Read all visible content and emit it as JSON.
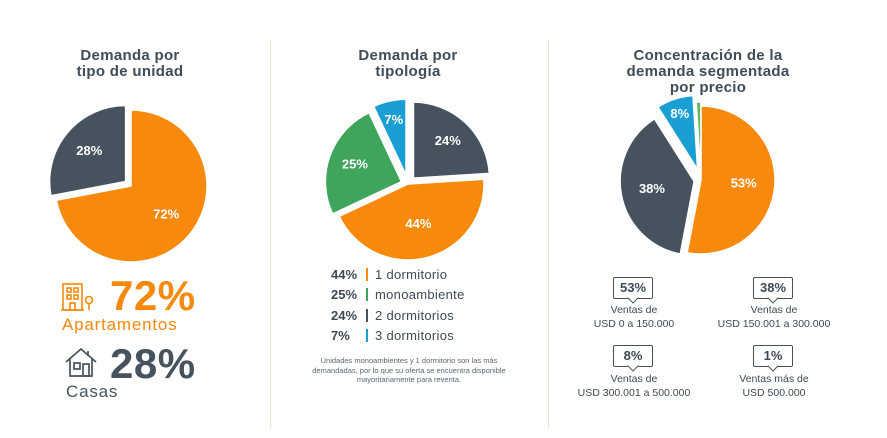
{
  "colors": {
    "orange": "#f7890c",
    "slate": "#46535e",
    "green": "#3fa55b",
    "blue": "#1a9ed3",
    "lime": "#5cb85c"
  },
  "panel1": {
    "title": "Demanda por\ntipo de unidad",
    "big1": {
      "value": "72%",
      "label": "Apartamentos",
      "icon": "building-icon"
    },
    "big2": {
      "value": "28%",
      "label": "Casas",
      "icon": "house-icon"
    }
  },
  "panel2": {
    "title": "Demanda por\ntipología",
    "legend": [
      {
        "pct": "44%",
        "label": "1 dormitorio"
      },
      {
        "pct": "25%",
        "label": "monoambiente"
      },
      {
        "pct": "24%",
        "label": "2 dormitorios"
      },
      {
        "pct": "7%",
        "label": "3 dormitorios"
      }
    ],
    "note": "Unidades monoambientes y 1 dormitorio son las más demandadas, por lo que su oferta se encuentra disponible mayoritariamente para reventa."
  },
  "panel3": {
    "title": "Concentración de la\ndemanda segmentada\npor precio",
    "segments": [
      {
        "pct": "53%",
        "label": "Ventas de\nUSD 0 a 150.000"
      },
      {
        "pct": "38%",
        "label": "Ventas de\nUSD 150.001 a 300.000"
      },
      {
        "pct": "8%",
        "label": "Ventas de\nUSD 300.001 a 500.000"
      },
      {
        "pct": "1%",
        "label": "Ventas más de\nUSD 500.000"
      }
    ]
  },
  "chart_data": [
    {
      "type": "pie",
      "title": "Demanda por tipo de unidad",
      "series": [
        {
          "name": "Apartamentos",
          "value": 72,
          "color": "#f7890c",
          "label": "72%"
        },
        {
          "name": "Casas",
          "value": 28,
          "color": "#46535e",
          "label": "28%"
        }
      ]
    },
    {
      "type": "pie",
      "title": "Demanda por tipología",
      "series": [
        {
          "name": "2 dormitorios",
          "value": 24,
          "color": "#46535e",
          "label": "24%"
        },
        {
          "name": "1 dormitorio",
          "value": 44,
          "color": "#f7890c",
          "label": "44%"
        },
        {
          "name": "monoambiente",
          "value": 25,
          "color": "#3fa55b",
          "label": "25%"
        },
        {
          "name": "3 dormitorios",
          "value": 7,
          "color": "#1a9ed3",
          "label": "7%"
        }
      ]
    },
    {
      "type": "pie",
      "title": "Concentración de la demanda segmentada por precio",
      "series": [
        {
          "name": "USD 0 a 150.000",
          "value": 53,
          "color": "#f7890c",
          "label": "53%"
        },
        {
          "name": "USD 150.001 a 300.000",
          "value": 38,
          "color": "#46535e",
          "label": "38%"
        },
        {
          "name": "USD 300.001 a 500.000",
          "value": 8,
          "color": "#1a9ed3",
          "label": "8%"
        },
        {
          "name": "más de USD 500.000",
          "value": 1,
          "color": "#5cb85c",
          "label": ""
        }
      ]
    }
  ]
}
